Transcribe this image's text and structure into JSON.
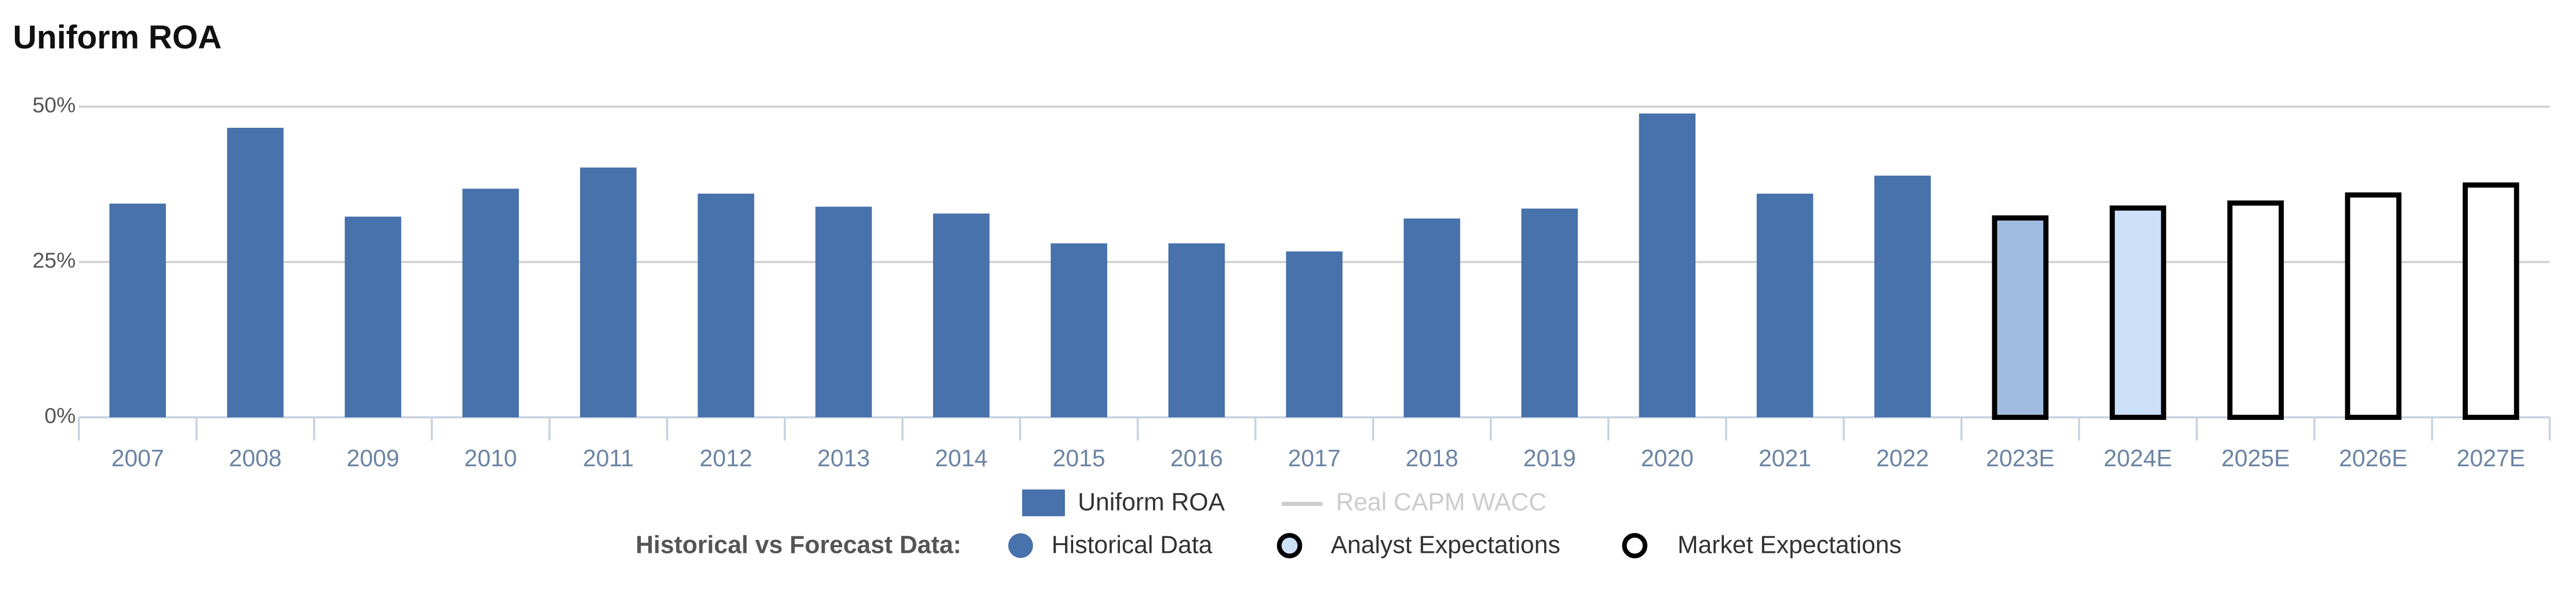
{
  "chart_data": {
    "type": "bar",
    "title": "Uniform ROA",
    "categories": [
      "2007",
      "2008",
      "2009",
      "2010",
      "2011",
      "2012",
      "2013",
      "2014",
      "2015",
      "2016",
      "2017",
      "2018",
      "2019",
      "2020",
      "2021",
      "2022",
      "2023E",
      "2024E",
      "2025E",
      "2026E",
      "2027E"
    ],
    "series": [
      {
        "name": "Uniform ROA",
        "color": "#4872ab",
        "values": [
          34.4,
          46.6,
          32.3,
          36.8,
          40.2,
          36.0,
          33.9,
          32.8,
          28.0,
          28.0,
          26.7,
          32.0,
          33.6,
          48.9,
          36.0,
          38.9,
          32.5,
          34.1,
          34.9,
          36.2,
          37.8
        ],
        "bar_fills": [
          "#4872ab",
          "#4872ab",
          "#4872ab",
          "#4872ab",
          "#4872ab",
          "#4872ab",
          "#4872ab",
          "#4872ab",
          "#4872ab",
          "#4872ab",
          "#4872ab",
          "#4872ab",
          "#4872ab",
          "#4872ab",
          "#4872ab",
          "#4872ab",
          "#a0bce0",
          "#cce0f8",
          "#ffffff",
          "#ffffff",
          "#ffffff"
        ],
        "bar_strokes": [
          null,
          null,
          null,
          null,
          null,
          null,
          null,
          null,
          null,
          null,
          null,
          null,
          null,
          null,
          null,
          null,
          "#000000",
          "#000000",
          "#000000",
          "#000000",
          "#000000"
        ]
      },
      {
        "name": "Real CAPM WACC",
        "color": "#cccccc",
        "hidden": true
      }
    ],
    "ylim": [
      0,
      50
    ],
    "yticks": [
      {
        "value": 0,
        "label": "0%"
      },
      {
        "value": 25,
        "label": "25%"
      },
      {
        "value": 50,
        "label": "50%"
      }
    ],
    "grid": true,
    "forecast_legend": {
      "title": "Historical vs Forecast Data:",
      "items": [
        {
          "label": "Historical Data",
          "fill": "#4872ab",
          "stroke": null
        },
        {
          "label": "Analyst Expectations",
          "fill": "#cce0f8",
          "stroke": "#000000"
        },
        {
          "label": "Market Expectations",
          "fill": "#ffffff",
          "stroke": "#000000"
        }
      ]
    }
  }
}
